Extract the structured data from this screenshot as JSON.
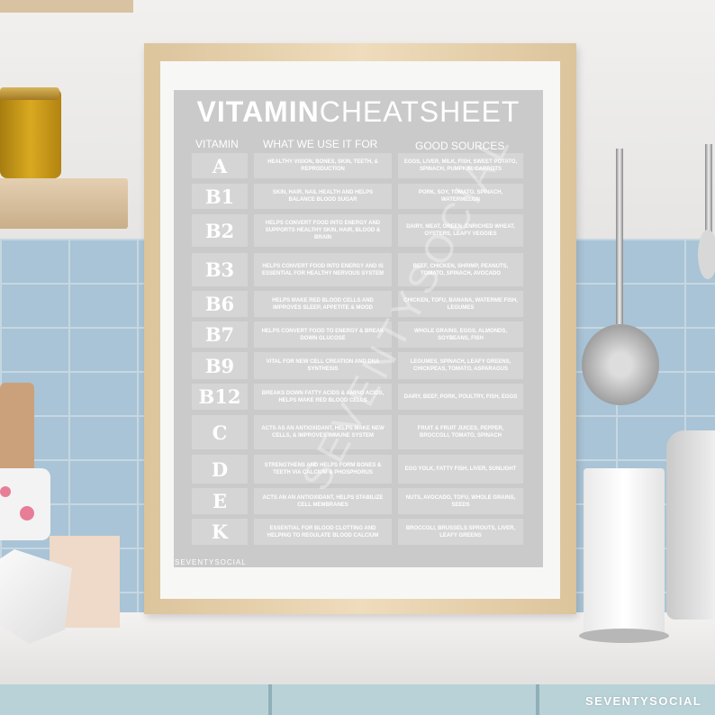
{
  "poster": {
    "title_bold": "VITAMIN",
    "title_light": "CHEATSHEET",
    "headers": {
      "vitamin": "VITAMIN",
      "use": "WHAT WE USE IT FOR",
      "sources": "GOOD SOURCES"
    },
    "rows": [
      {
        "vitamin": "A",
        "use": "Healthy vision, bones, skin, teeth, & reproduction",
        "sources": "Eggs, liver, milk, fish, sweet potato, spinach, pumpkin, carrots"
      },
      {
        "vitamin": "B1",
        "use": "Skin, hair, nail health and helps balance blood sugar",
        "sources": "Pork, soy, tomato, spinach, watermelon"
      },
      {
        "vitamin": "B2",
        "use": "Helps convert food into energy and supports healthy skin, hair, blood & brain",
        "sources": "Dairy, meat, green ,enriched wheat, oysters, leafy veggies"
      },
      {
        "vitamin": "B3",
        "use": "Helps convert food into energy and is essential for healthy nervous system",
        "sources": "Beef, chicken, shrimp, peanuts, tomato, spinach, avocado"
      },
      {
        "vitamin": "B6",
        "use": "Helps make red blood cells and improves sleep, appetite & mood",
        "sources": "Chicken, tofu, banana, waterme fish, legumes"
      },
      {
        "vitamin": "B7",
        "use": "Helps convert food to energy & break down glucose",
        "sources": "Whole grains, eggs, almonds, soybeans, fish"
      },
      {
        "vitamin": "B9",
        "use": "Vital for new cell creation and DNA synthesis",
        "sources": "Legumes, spinach, leafy greens, chickpeas, tomato, asparagus"
      },
      {
        "vitamin": "B12",
        "use": "Breaks down fatty acids & amino acids, helps make red blood cells",
        "sources": "Dairy, beef, pork, poultry, fish, eggs"
      },
      {
        "vitamin": "C",
        "use": "Acts as an antioxidant, helps make new cells, & improves immune system",
        "sources": "Fruit & fruit juices, pepper, broccoli, tomato, spinach"
      },
      {
        "vitamin": "D",
        "use": "Strengthens and helps form bones & teeth via calcium & phosphorus",
        "sources": "Egg yolk, fatty fish, liver, sunlight"
      },
      {
        "vitamin": "E",
        "use": "Acts an an antioxidant, helps stabilize cell membranes",
        "sources": "Nuts, avocado, tofu, whole grains, seeds"
      },
      {
        "vitamin": "K",
        "use": "Essential for blood clotting and helping to regulate blood calcium",
        "sources": "Broccoli, brussels sprouts, liver, leafy greens"
      }
    ],
    "footer_brand": "SEVENTYSOCIAL",
    "watermark": "SEVENTYSOCIAL"
  },
  "corner_brand": "SEVENTYSOCIAL",
  "colors": {
    "poster_bg": "#c9cac9",
    "cell_bg": "#d4d5d4",
    "tiles": "#a9c4d6",
    "frame": "#e6d2b0"
  }
}
